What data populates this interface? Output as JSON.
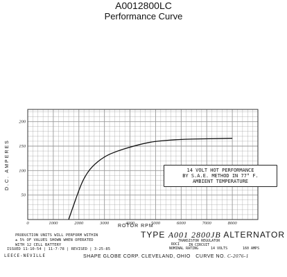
{
  "header": {
    "title": "A0012800LC",
    "subtitle": "Performance Curve"
  },
  "chart_data": {
    "type": "line",
    "title": "",
    "xlabel": "ROTOR RPM",
    "ylabel": "D.C. AMPERES",
    "xlim": [
      0,
      9000
    ],
    "ylim": [
      0,
      225
    ],
    "x_ticks": [
      "0",
      "1000",
      "2000",
      "3000",
      "4000",
      "5000",
      "6000",
      "7000",
      "8000"
    ],
    "y_ticks": [
      "50",
      "100",
      "150",
      "200"
    ],
    "grid": true,
    "series": [
      {
        "x": [
          1600,
          1800,
          2000,
          2200,
          2500,
          3000,
          3500,
          4000,
          4500,
          5000,
          6000,
          7000,
          8000
        ],
        "y": [
          0,
          30,
          60,
          85,
          108,
          129,
          140,
          148,
          155,
          160,
          164,
          165,
          166
        ]
      }
    ],
    "annotation": [
      "14 VOLT HOT PERFORMANCE",
      "BY S.A.E. METHOD IN 77° F.",
      "AMBIENT TEMPERATURE"
    ]
  },
  "footer": {
    "production_note": [
      "PRODUCTION UNITS WILL PERFORM WITHIN",
      "± 5% OF VALUES SHOWN WHEN OPERATED",
      "WITH 12 CELL BATTERY"
    ],
    "issued": "ISSUED 11-10-54 | 11-7-78 | REVISED | 3-25-85",
    "type_label": "TYPE",
    "model": "A001 2800JB",
    "type_suffix": "ALTERNATOR",
    "regulator": "TRANSISTOR REGULATOR",
    "incircuit": "IN CIRCUIT",
    "rocl": "ROCI",
    "rating_label": "NOMINAL RATING",
    "rating_volts": "14 VOLTS",
    "rating_amps": "160 AMPS",
    "company": "LEECE-NEVILLE",
    "address": "SHAPE  GLOBE CORP. CLEVELAND, OHIO",
    "curve_label": "CURVE NO.",
    "curve_no": "C-2076-1"
  }
}
